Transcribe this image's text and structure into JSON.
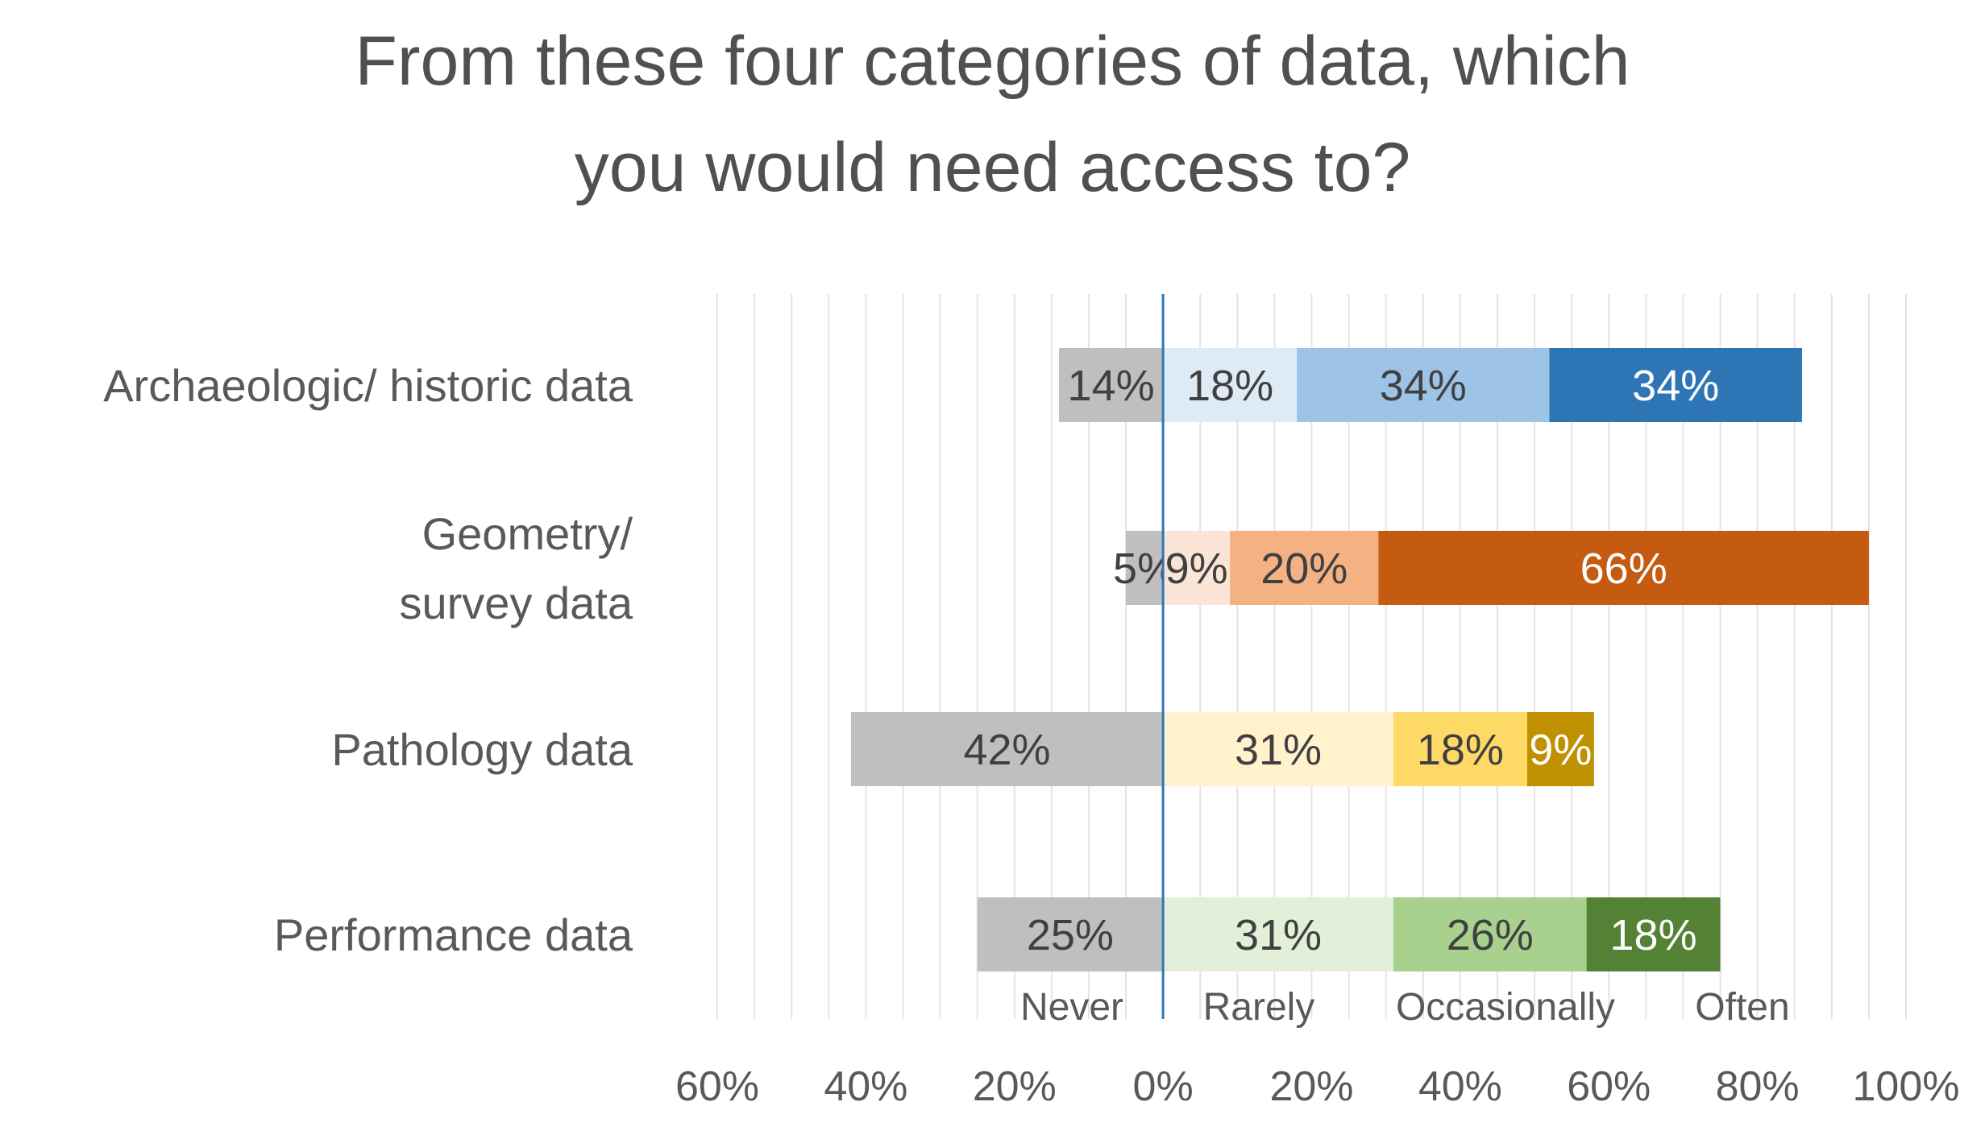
{
  "chart_data": {
    "type": "bar",
    "subtype": "diverging-stacked-horizontal",
    "title_lines": [
      "From these four categories of data, which",
      "you would need access to?"
    ],
    "categories": [
      "Archaeologic/ historic data",
      "Geometry/ survey data",
      "Pathology data",
      "Performance data"
    ],
    "category_lines": [
      [
        "Archaeologic/ historic data"
      ],
      [
        "Geometry/",
        "survey data"
      ],
      [
        "Pathology data"
      ],
      [
        "Performance data"
      ]
    ],
    "series": [
      {
        "name": "Never",
        "direction": "negative",
        "values": [
          14,
          5,
          42,
          25
        ],
        "labels": [
          "14%",
          "5%",
          "42%",
          "25%"
        ]
      },
      {
        "name": "Rarely",
        "values": [
          18,
          9,
          31,
          31
        ],
        "labels": [
          "18%",
          "9%",
          "31%",
          "31%"
        ]
      },
      {
        "name": "Occasionally",
        "values": [
          34,
          20,
          18,
          26
        ],
        "labels": [
          "34%",
          "20%",
          "18%",
          "26%"
        ]
      },
      {
        "name": "Often",
        "values": [
          34,
          66,
          9,
          18
        ],
        "labels": [
          "34%",
          "66%",
          "9%",
          "18%"
        ]
      }
    ],
    "colors": [
      [
        "#bfbfbf",
        "#deebf7",
        "#9dc3e6",
        "#2e75b6"
      ],
      [
        "#bfbfbf",
        "#fbe5d6",
        "#f4b183",
        "#c55a11"
      ],
      [
        "#bfbfbf",
        "#fff2cc",
        "#ffd966",
        "#bf9000"
      ],
      [
        "#bfbfbf",
        "#e2f0d9",
        "#a9d18e",
        "#548235"
      ]
    ],
    "label_colors": [
      [
        "#404040",
        "#404040",
        "#404040",
        "#ffffff"
      ],
      [
        "#404040",
        "#404040",
        "#404040",
        "#ffffff"
      ],
      [
        "#404040",
        "#404040",
        "#404040",
        "#ffffff"
      ],
      [
        "#404040",
        "#404040",
        "#404040",
        "#ffffff"
      ]
    ],
    "xlim": [
      -60,
      100
    ],
    "xticks": [
      -60,
      -40,
      -20,
      0,
      20,
      40,
      60,
      80,
      100
    ],
    "xtick_labels": [
      "60%",
      "40%",
      "20%",
      "0%",
      "20%",
      "40%",
      "60%",
      "80%",
      "100%"
    ],
    "legend": [
      "Never",
      "Rarely",
      "Occasionally",
      "Often"
    ],
    "legend_position": "bottom",
    "grid": true
  }
}
